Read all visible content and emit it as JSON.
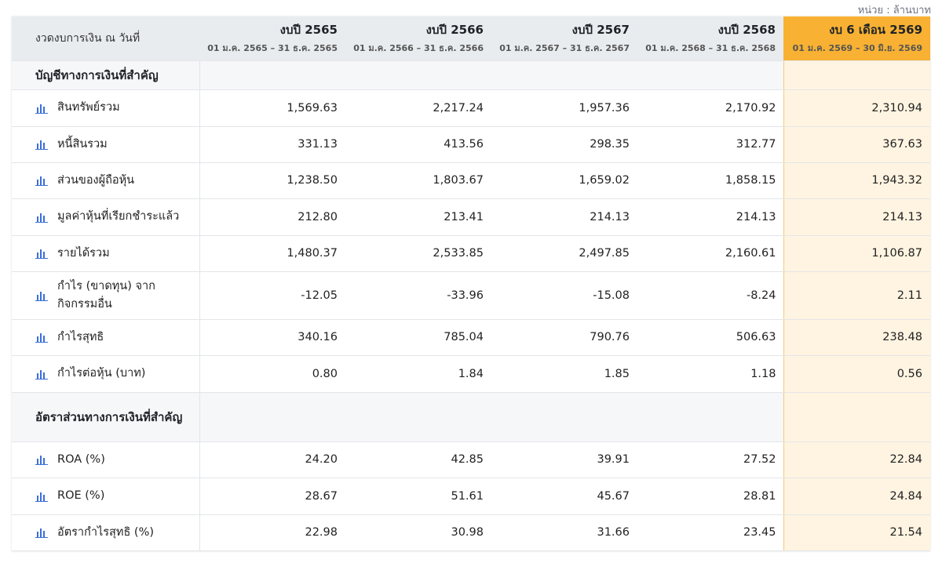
{
  "unit_note": "หน่วย : ล้านบาท",
  "header": {
    "label": "งวดงบการเงิน ณ วันที่",
    "periods": [
      {
        "title": "งบปี 2565",
        "range": "01 ม.ค. 2565 – 31 ธ.ค. 2565"
      },
      {
        "title": "งบปี 2566",
        "range": "01 ม.ค. 2566 – 31 ธ.ค. 2566"
      },
      {
        "title": "งบปี 2567",
        "range": "01 ม.ค. 2567 – 31 ธ.ค. 2567"
      },
      {
        "title": "งบปี 2568",
        "range": "01 ม.ค. 2568 – 31 ธ.ค. 2568"
      },
      {
        "title": "งบ 6 เดือน 2569",
        "range": "01 ม.ค. 2569 – 30 มิ.ย. 2569"
      }
    ]
  },
  "colors": {
    "highlight_header": "#f8b132",
    "highlight_column": "#fff4e1",
    "icon": "#3b6fd8",
    "header_bg": "#e9ecef"
  },
  "icon": "bar-chart-icon",
  "sections": [
    {
      "title": "บัญชีทางการเงินที่สำคัญ",
      "rows": [
        {
          "label": "สินทรัพย์รวม",
          "values": [
            "1,569.63",
            "2,217.24",
            "1,957.36",
            "2,170.92",
            "2,310.94"
          ]
        },
        {
          "label": "หนี้สินรวม",
          "values": [
            "331.13",
            "413.56",
            "298.35",
            "312.77",
            "367.63"
          ]
        },
        {
          "label": "ส่วนของผู้ถือหุ้น",
          "values": [
            "1,238.50",
            "1,803.67",
            "1,659.02",
            "1,858.15",
            "1,943.32"
          ]
        },
        {
          "label": "มูลค่าหุ้นที่เรียกชำระแล้ว",
          "values": [
            "212.80",
            "213.41",
            "214.13",
            "214.13",
            "214.13"
          ]
        },
        {
          "label": "รายได้รวม",
          "values": [
            "1,480.37",
            "2,533.85",
            "2,497.85",
            "2,160.61",
            "1,106.87"
          ]
        },
        {
          "label": "กำไร (ขาดทุน) จากกิจกรรมอื่น",
          "values": [
            "-12.05",
            "-33.96",
            "-15.08",
            "-8.24",
            "2.11"
          ]
        },
        {
          "label": "กำไรสุทธิ",
          "values": [
            "340.16",
            "785.04",
            "790.76",
            "506.63",
            "238.48"
          ]
        },
        {
          "label": "กำไรต่อหุ้น (บาท)",
          "values": [
            "0.80",
            "1.84",
            "1.85",
            "1.18",
            "0.56"
          ]
        }
      ]
    },
    {
      "title": "อัตราส่วนทางการเงินที่สำคัญ",
      "rows": [
        {
          "label": "ROA (%)",
          "values": [
            "24.20",
            "42.85",
            "39.91",
            "27.52",
            "22.84"
          ]
        },
        {
          "label": "ROE (%)",
          "values": [
            "28.67",
            "51.61",
            "45.67",
            "28.81",
            "24.84"
          ]
        },
        {
          "label": "อัตรากำไรสุทธิ (%)",
          "values": [
            "22.98",
            "30.98",
            "31.66",
            "23.45",
            "21.54"
          ]
        }
      ]
    }
  ]
}
